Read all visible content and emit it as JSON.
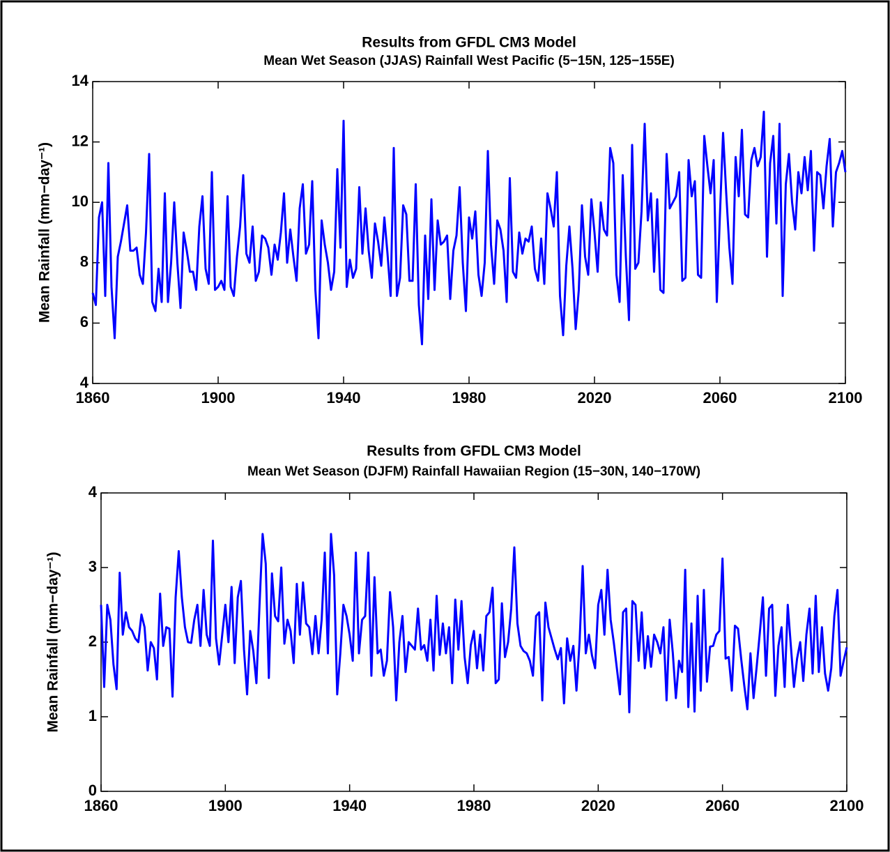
{
  "chart_data": [
    {
      "type": "line",
      "title": "Results from GFDL CM3 Model",
      "subtitle": "Mean Wet Season (JJAS) Rainfall West Pacific (5−15N, 125−155E)",
      "ylabel": "Mean Rainfall (mm−day⁻¹)",
      "color": "#0000ff",
      "x": [
        1860,
        1861,
        1862,
        1863,
        1864,
        1865,
        1866,
        1867,
        1868,
        1869,
        1870,
        1871,
        1872,
        1873,
        1874,
        1875,
        1876,
        1877,
        1878,
        1879,
        1880,
        1881,
        1882,
        1883,
        1884,
        1885,
        1886,
        1887,
        1888,
        1889,
        1890,
        1891,
        1892,
        1893,
        1894,
        1895,
        1896,
        1897,
        1898,
        1899,
        1900,
        1901,
        1902,
        1903,
        1904,
        1905,
        1906,
        1907,
        1908,
        1909,
        1910,
        1911,
        1912,
        1913,
        1914,
        1915,
        1916,
        1917,
        1918,
        1919,
        1920,
        1921,
        1922,
        1923,
        1924,
        1925,
        1926,
        1927,
        1928,
        1929,
        1930,
        1931,
        1932,
        1933,
        1934,
        1935,
        1936,
        1937,
        1938,
        1939,
        1940,
        1941,
        1942,
        1943,
        1944,
        1945,
        1946,
        1947,
        1948,
        1949,
        1950,
        1951,
        1952,
        1953,
        1954,
        1955,
        1956,
        1957,
        1958,
        1959,
        1960,
        1961,
        1962,
        1963,
        1964,
        1965,
        1966,
        1967,
        1968,
        1969,
        1970,
        1971,
        1972,
        1973,
        1974,
        1975,
        1976,
        1977,
        1978,
        1979,
        1980,
        1981,
        1982,
        1983,
        1984,
        1985,
        1986,
        1987,
        1988,
        1989,
        1990,
        1991,
        1992,
        1993,
        1994,
        1995,
        1996,
        1997,
        1998,
        1999,
        2000,
        2001,
        2002,
        2003,
        2004,
        2005,
        2006,
        2007,
        2008,
        2009,
        2010,
        2011,
        2012,
        2013,
        2014,
        2015,
        2016,
        2017,
        2018,
        2019,
        2020,
        2021,
        2022,
        2023,
        2024,
        2025,
        2026,
        2027,
        2028,
        2029,
        2030,
        2031,
        2032,
        2033,
        2034,
        2035,
        2036,
        2037,
        2038,
        2039,
        2040,
        2041,
        2042,
        2043,
        2044,
        2045,
        2046,
        2047,
        2048,
        2049,
        2050,
        2051,
        2052,
        2053,
        2054,
        2055,
        2056,
        2057,
        2058,
        2059,
        2060,
        2061,
        2062,
        2063,
        2064,
        2065,
        2066,
        2067,
        2068,
        2069,
        2070,
        2071,
        2072,
        2073,
        2074,
        2075,
        2076,
        2077,
        2078,
        2079,
        2080,
        2081,
        2082,
        2083,
        2084,
        2085,
        2086,
        2087,
        2088,
        2089,
        2090,
        2091,
        2092,
        2093,
        2094,
        2095,
        2096,
        2097,
        2098,
        2099,
        2100
      ],
      "values": [
        7.0,
        6.6,
        9.5,
        10.0,
        6.9,
        11.3,
        7.2,
        5.5,
        8.2,
        8.7,
        9.3,
        9.9,
        8.4,
        8.4,
        8.5,
        7.6,
        7.3,
        9.0,
        11.6,
        6.7,
        6.4,
        7.8,
        6.7,
        10.3,
        6.7,
        8.0,
        10.0,
        8.0,
        6.5,
        9.0,
        8.4,
        7.7,
        7.7,
        7.1,
        9.2,
        10.2,
        7.8,
        7.3,
        11.0,
        7.1,
        7.2,
        7.4,
        7.1,
        10.2,
        7.2,
        6.9,
        8.2,
        9.2,
        10.9,
        8.3,
        8.0,
        9.2,
        7.4,
        7.7,
        8.9,
        8.8,
        8.5,
        7.6,
        8.6,
        8.1,
        9.0,
        10.3,
        8.0,
        9.1,
        8.2,
        7.4,
        9.8,
        10.6,
        8.3,
        8.6,
        10.7,
        7.1,
        5.5,
        9.4,
        8.6,
        8.0,
        7.1,
        7.7,
        11.1,
        8.5,
        12.7,
        7.2,
        8.1,
        7.5,
        7.8,
        10.5,
        8.3,
        9.8,
        8.4,
        7.5,
        9.3,
        8.7,
        7.9,
        9.5,
        8.3,
        6.9,
        11.8,
        6.9,
        7.5,
        9.9,
        9.6,
        7.4,
        7.4,
        10.6,
        6.6,
        5.3,
        8.9,
        6.8,
        10.1,
        7.1,
        9.4,
        8.6,
        8.7,
        8.9,
        6.8,
        8.4,
        8.9,
        10.5,
        8.0,
        6.4,
        9.5,
        8.8,
        9.7,
        7.6,
        6.9,
        8.0,
        11.7,
        8.6,
        7.3,
        9.4,
        9.1,
        8.4,
        6.7,
        10.8,
        7.7,
        7.5,
        9.0,
        8.3,
        8.8,
        8.7,
        9.2,
        7.8,
        7.4,
        8.8,
        7.3,
        10.3,
        9.8,
        9.2,
        11.0,
        6.9,
        5.6,
        7.9,
        9.2,
        7.8,
        5.8,
        7.1,
        9.9,
        8.2,
        7.6,
        10.1,
        9.0,
        7.7,
        10.0,
        9.1,
        8.9,
        11.8,
        11.3,
        7.6,
        6.7,
        10.9,
        8.2,
        6.1,
        11.9,
        7.8,
        8.0,
        9.7,
        12.6,
        9.4,
        10.3,
        7.7,
        10.1,
        7.1,
        7.0,
        11.6,
        9.8,
        10.0,
        10.2,
        11.0,
        7.4,
        7.5,
        11.4,
        10.2,
        10.7,
        7.6,
        7.5,
        12.2,
        11.2,
        10.3,
        11.4,
        6.7,
        9.6,
        12.3,
        10.3,
        8.5,
        7.3,
        11.5,
        10.2,
        12.4,
        9.6,
        9.5,
        11.4,
        11.8,
        11.2,
        11.5,
        13.0,
        8.2,
        11.3,
        12.2,
        9.3,
        12.6,
        6.9,
        10.6,
        11.6,
        10.0,
        9.1,
        11.0,
        10.3,
        11.5,
        10.4,
        11.7,
        8.4,
        11.0,
        10.9,
        9.8,
        11.2,
        12.1,
        9.2,
        11.0,
        11.3,
        11.7,
        11.0
      ],
      "xlim": [
        1860,
        2100
      ],
      "xticks": [
        1860,
        1900,
        1940,
        1980,
        2020,
        2060,
        2100
      ],
      "ylim": [
        4,
        14
      ],
      "yticks": [
        4,
        6,
        8,
        10,
        12,
        14
      ]
    },
    {
      "type": "line",
      "title": "Results from GFDL CM3 Model",
      "subtitle": "Mean Wet Season (DJFM) Rainfall Hawaiian Region (15−30N, 140−170W)",
      "ylabel": "Mean Rainfall (mm−day⁻¹)",
      "color": "#0000ff",
      "x": [
        1860,
        1861,
        1862,
        1863,
        1864,
        1865,
        1866,
        1867,
        1868,
        1869,
        1870,
        1871,
        1872,
        1873,
        1874,
        1875,
        1876,
        1877,
        1878,
        1879,
        1880,
        1881,
        1882,
        1883,
        1884,
        1885,
        1886,
        1887,
        1888,
        1889,
        1890,
        1891,
        1892,
        1893,
        1894,
        1895,
        1896,
        1897,
        1898,
        1899,
        1900,
        1901,
        1902,
        1903,
        1904,
        1905,
        1906,
        1907,
        1908,
        1909,
        1910,
        1911,
        1912,
        1913,
        1914,
        1915,
        1916,
        1917,
        1918,
        1919,
        1920,
        1921,
        1922,
        1923,
        1924,
        1925,
        1926,
        1927,
        1928,
        1929,
        1930,
        1931,
        1932,
        1933,
        1934,
        1935,
        1936,
        1937,
        1938,
        1939,
        1940,
        1941,
        1942,
        1943,
        1944,
        1945,
        1946,
        1947,
        1948,
        1949,
        1950,
        1951,
        1952,
        1953,
        1954,
        1955,
        1956,
        1957,
        1958,
        1959,
        1960,
        1961,
        1962,
        1963,
        1964,
        1965,
        1966,
        1967,
        1968,
        1969,
        1970,
        1971,
        1972,
        1973,
        1974,
        1975,
        1976,
        1977,
        1978,
        1979,
        1980,
        1981,
        1982,
        1983,
        1984,
        1985,
        1986,
        1987,
        1988,
        1989,
        1990,
        1991,
        1992,
        1993,
        1994,
        1995,
        1996,
        1997,
        1998,
        1999,
        2000,
        2001,
        2002,
        2003,
        2004,
        2005,
        2006,
        2007,
        2008,
        2009,
        2010,
        2011,
        2012,
        2013,
        2014,
        2015,
        2016,
        2017,
        2018,
        2019,
        2020,
        2021,
        2022,
        2023,
        2024,
        2025,
        2026,
        2027,
        2028,
        2029,
        2030,
        2031,
        2032,
        2033,
        2034,
        2035,
        2036,
        2037,
        2038,
        2039,
        2040,
        2041,
        2042,
        2043,
        2044,
        2045,
        2046,
        2047,
        2048,
        2049,
        2050,
        2051,
        2052,
        2053,
        2054,
        2055,
        2056,
        2057,
        2058,
        2059,
        2060,
        2061,
        2062,
        2063,
        2064,
        2065,
        2066,
        2067,
        2068,
        2069,
        2070,
        2071,
        2072,
        2073,
        2074,
        2075,
        2076,
        2077,
        2078,
        2079,
        2080,
        2081,
        2082,
        2083,
        2084,
        2085,
        2086,
        2087,
        2088,
        2089,
        2090,
        2091,
        2092,
        2093,
        2094,
        2095,
        2096,
        2097,
        2098,
        2099,
        2100
      ],
      "values": [
        2.5,
        1.4,
        2.5,
        2.3,
        1.7,
        1.37,
        2.93,
        2.1,
        2.4,
        2.2,
        2.15,
        2.05,
        2.0,
        2.37,
        2.2,
        1.62,
        2.0,
        1.92,
        1.5,
        2.65,
        1.95,
        2.2,
        2.18,
        1.27,
        2.6,
        3.22,
        2.6,
        2.2,
        2.0,
        1.99,
        2.3,
        2.5,
        1.95,
        2.7,
        2.1,
        1.95,
        3.36,
        2.05,
        1.7,
        2.1,
        2.5,
        2.0,
        2.74,
        1.72,
        2.6,
        2.82,
        1.9,
        1.3,
        2.15,
        1.88,
        1.45,
        2.5,
        3.45,
        3.05,
        1.52,
        2.92,
        2.35,
        2.28,
        3.0,
        1.98,
        2.3,
        2.15,
        1.72,
        2.78,
        2.1,
        2.8,
        2.25,
        2.2,
        1.84,
        2.35,
        1.85,
        2.3,
        3.2,
        1.85,
        3.45,
        2.9,
        1.3,
        1.85,
        2.5,
        2.35,
        2.1,
        1.75,
        3.2,
        1.85,
        2.3,
        2.35,
        3.2,
        1.55,
        2.87,
        1.85,
        1.9,
        1.55,
        1.75,
        2.67,
        2.2,
        1.22,
        2.0,
        2.35,
        1.6,
        2.0,
        1.95,
        1.9,
        2.45,
        1.9,
        1.96,
        1.75,
        2.3,
        1.62,
        2.62,
        1.83,
        2.25,
        1.85,
        2.2,
        1.45,
        2.57,
        1.9,
        2.55,
        1.8,
        1.45,
        1.96,
        2.15,
        1.65,
        2.1,
        1.62,
        2.35,
        2.4,
        2.73,
        1.45,
        1.5,
        2.52,
        1.8,
        2.0,
        2.45,
        3.27,
        2.25,
        1.95,
        1.88,
        1.85,
        1.75,
        1.55,
        2.35,
        2.4,
        1.22,
        2.53,
        2.2,
        2.05,
        1.9,
        1.77,
        1.92,
        1.18,
        2.05,
        1.75,
        1.95,
        1.35,
        2.0,
        3.02,
        1.85,
        2.1,
        1.82,
        1.65,
        2.5,
        2.7,
        2.1,
        2.97,
        2.3,
        2.0,
        1.65,
        1.3,
        2.4,
        2.45,
        1.06,
        2.55,
        2.5,
        1.75,
        2.4,
        1.65,
        2.08,
        1.67,
        2.1,
        2.0,
        1.85,
        2.2,
        1.22,
        2.3,
        1.86,
        1.25,
        1.75,
        1.6,
        2.97,
        1.13,
        2.25,
        1.07,
        2.62,
        1.35,
        2.7,
        1.47,
        1.94,
        1.95,
        2.1,
        2.15,
        3.12,
        1.78,
        1.8,
        1.35,
        2.22,
        2.18,
        1.78,
        1.42,
        1.1,
        1.85,
        1.25,
        1.67,
        2.12,
        2.6,
        1.55,
        2.45,
        2.5,
        1.28,
        1.95,
        2.2,
        1.4,
        2.5,
        1.95,
        1.4,
        1.78,
        2.0,
        1.48,
        2.1,
        2.45,
        1.58,
        2.62,
        1.6,
        2.2,
        1.58,
        1.35,
        1.65,
        2.35,
        2.7,
        1.55,
        1.75,
        1.93
      ],
      "xlim": [
        1860,
        2100
      ],
      "xticks": [
        1860,
        1900,
        1940,
        1980,
        2020,
        2060,
        2100
      ],
      "ylim": [
        0,
        4
      ],
      "yticks": [
        0,
        1,
        2,
        3,
        4
      ]
    }
  ]
}
